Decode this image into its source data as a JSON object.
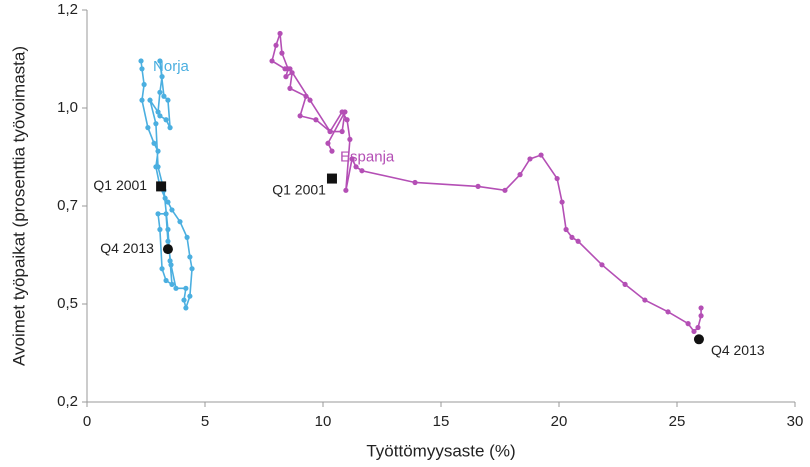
{
  "chart_data": {
    "type": "connected-scatter",
    "x_label": "Työttömyysaste (%)",
    "y_label": "Avoimet työpaikat (prosenttia työvoimasta)",
    "xlim": [
      0,
      30
    ],
    "xticks": [
      0,
      5,
      10,
      15,
      20,
      25,
      30
    ],
    "ylim": [
      0.2,
      1.2
    ],
    "yticks": [
      {
        "value": 0.2,
        "label": "0,2"
      },
      {
        "value": 0.45,
        "label": "0,5"
      },
      {
        "value": 0.7,
        "label": "0,7"
      },
      {
        "value": 0.95,
        "label": "1,0"
      },
      {
        "value": 1.2,
        "label": "1,2"
      }
    ],
    "series": [
      {
        "name": "Norja",
        "color": "#4bafe0",
        "x": [
          2.29,
          2.33,
          2.42,
          2.33,
          2.58,
          2.84,
          3.01,
          2.92,
          3.09,
          3.31,
          3.43,
          3.6,
          3.94,
          4.24,
          4.36,
          4.45,
          4.36,
          4.19,
          4.11,
          4.19,
          3.77,
          3.56,
          3.43,
          3.35,
          3.01,
          3.09,
          3.18,
          3.35,
          3.6,
          3.52,
          3.43,
          3.26,
          3.01,
          2.92,
          2.67,
          3.01,
          3.09,
          3.18,
          3.09,
          3.26,
          3.43,
          3.52,
          3.35,
          3.09
        ],
        "y": [
          1.07,
          1.05,
          1.01,
          0.97,
          0.9,
          0.86,
          0.84,
          0.8,
          0.75,
          0.72,
          0.71,
          0.69,
          0.66,
          0.62,
          0.57,
          0.54,
          0.47,
          0.44,
          0.46,
          0.49,
          0.49,
          0.55,
          0.61,
          0.68,
          0.68,
          0.64,
          0.54,
          0.51,
          0.5,
          0.56,
          0.64,
          0.74,
          0.8,
          0.91,
          0.97,
          0.94,
          0.99,
          1.03,
          1.07,
          0.98,
          0.97,
          0.9,
          0.92,
          0.93
        ]
      },
      {
        "name": "Espanja",
        "color": "#b44fb5",
        "x": [
          10.38,
          10.21,
          10.93,
          10.81,
          10.3,
          9.7,
          9.03,
          9.28,
          8.6,
          8.69,
          8.43,
          8.52,
          8.26,
          8.18,
          8.01,
          7.84,
          8.39,
          8.6,
          9.45,
          10.3,
          10.81,
          11.02,
          11.14,
          10.97,
          11.23,
          11.4,
          11.65,
          13.9,
          16.57,
          17.71,
          18.35,
          18.77,
          19.24,
          19.92,
          20.13,
          20.3,
          20.55,
          20.81,
          21.82,
          22.8,
          23.64,
          24.62,
          25.47,
          25.72,
          25.89,
          26.02,
          26.02
        ],
        "y": [
          0.84,
          0.86,
          0.94,
          0.89,
          0.89,
          0.92,
          0.93,
          0.98,
          1.0,
          1.04,
          1.03,
          1.05,
          1.09,
          1.14,
          1.11,
          1.07,
          1.05,
          1.05,
          0.97,
          0.89,
          0.94,
          0.92,
          0.87,
          0.74,
          0.82,
          0.8,
          0.79,
          0.76,
          0.75,
          0.74,
          0.78,
          0.82,
          0.83,
          0.77,
          0.71,
          0.64,
          0.62,
          0.61,
          0.55,
          0.5,
          0.46,
          0.43,
          0.4,
          0.38,
          0.39,
          0.42,
          0.44
        ]
      }
    ],
    "markers": [
      {
        "label": "Q1 2001",
        "x": 3.14,
        "y": 0.75,
        "shape": "square"
      },
      {
        "label": "Q4 2013",
        "x": 3.43,
        "y": 0.59,
        "shape": "circle"
      },
      {
        "label": "Q1 2001",
        "x": 10.38,
        "y": 0.77,
        "shape": "square"
      },
      {
        "label": "Q4 2013",
        "x": 25.93,
        "y": 0.36,
        "shape": "circle"
      }
    ]
  }
}
